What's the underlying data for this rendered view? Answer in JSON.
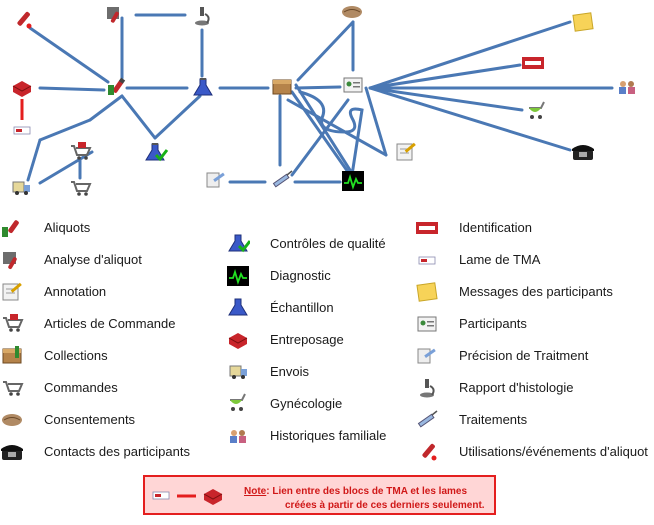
{
  "legend": {
    "col1": [
      {
        "label": "Aliquots",
        "icon": "aliquot-tube-icon"
      },
      {
        "label": "Analyse d'aliquot",
        "icon": "aliquot-analysis-icon"
      },
      {
        "label": "Annotation",
        "icon": "annotation-notepad-icon"
      },
      {
        "label": "Articles de Commande",
        "icon": "order-item-cart-icon"
      },
      {
        "label": "Collections",
        "icon": "collection-box-icon"
      },
      {
        "label": "Commandes",
        "icon": "shopping-cart-icon"
      },
      {
        "label": "Consentements",
        "icon": "handshake-icon"
      },
      {
        "label": "Contacts des participants",
        "icon": "telephone-icon"
      }
    ],
    "col2": [
      {
        "label": "Contrôles de qualité",
        "icon": "quality-control-flask-icon"
      },
      {
        "label": "Diagnostic",
        "icon": "ecg-monitor-icon"
      },
      {
        "label": "Échantillon",
        "icon": "sample-flask-icon"
      },
      {
        "label": "Entreposage",
        "icon": "storage-box-icon"
      },
      {
        "label": "Envois",
        "icon": "shipment-truck-icon"
      },
      {
        "label": "Gynécologie",
        "icon": "stroller-icon"
      },
      {
        "label": "Historiques familiale",
        "icon": "family-icon"
      }
    ],
    "col3": [
      {
        "label": "Identification",
        "icon": "identification-barcode-icon"
      },
      {
        "label": "Lame de TMA",
        "icon": "tma-slide-icon"
      },
      {
        "label": "Messages des participants",
        "icon": "sticky-note-icon"
      },
      {
        "label": "Participants",
        "icon": "participant-card-icon"
      },
      {
        "label": "Précision de Traitment",
        "icon": "treatment-detail-icon"
      },
      {
        "label": "Rapport d'histologie",
        "icon": "microscope-icon"
      },
      {
        "label": "Traitements",
        "icon": "syringe-icon"
      },
      {
        "label": "Utilisations/événements d'aliquot",
        "icon": "aliquot-use-icon"
      }
    ]
  },
  "note": {
    "prefix": "Note",
    "line1": ": Lien entre des blocs de TMA et les lames",
    "line2": "créées à partir de ces derniers seulement."
  },
  "colors": {
    "connector": "#4a78b4",
    "tma_link": "#e41e1e",
    "note_border": "#e41e1e",
    "note_bg": "#ffd6d6",
    "note_text": "#d01818"
  }
}
